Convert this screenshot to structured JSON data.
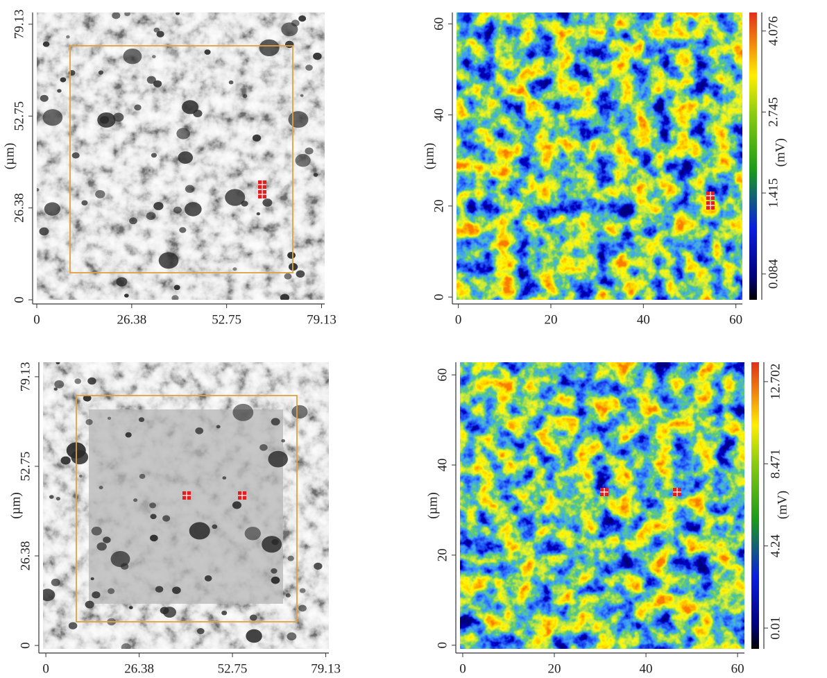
{
  "chart_data": [
    {
      "type": "image",
      "xlim": [
        0,
        80
      ],
      "ylim": [
        0,
        82.5
      ],
      "xticks": [
        0,
        26.38,
        52.75,
        79.13
      ],
      "yticks": [
        0,
        26.38,
        52.75,
        79.13
      ],
      "ylabel": "(µm)"
    },
    {
      "type": "heatmap",
      "xlim": [
        -0.4,
        61.4
      ],
      "ylim": [
        -0.6,
        62.5
      ],
      "xticks": [
        0,
        20,
        40,
        60
      ],
      "yticks": [
        0,
        20,
        40,
        60
      ],
      "ylabel": "(µm)",
      "colorbar": {
        "clim": [
          -0.34,
          4.38
        ],
        "ticks": [
          0.084,
          1.415,
          2.745,
          4.076
        ],
        "label": "(mV)"
      }
    },
    {
      "type": "image",
      "xlim": [
        -0.8,
        80
      ],
      "ylim": [
        -1,
        83.4
      ],
      "xticks": [
        0,
        26.38,
        52.75,
        79.13
      ],
      "yticks": [
        0,
        26.38,
        52.75,
        79.13
      ],
      "ylabel": "(µm)"
    },
    {
      "type": "heatmap",
      "xlim": [
        -0.6,
        61.5
      ],
      "ylim": [
        -0.8,
        62.8
      ],
      "xticks": [
        0,
        20,
        40,
        60
      ],
      "yticks": [
        0,
        20,
        40,
        60
      ],
      "ylabel": "(µm)",
      "colorbar": {
        "clim": [
          -1.06,
          13.7
        ],
        "ticks": [
          0.01,
          4.24,
          8.471,
          12.702
        ],
        "label": "(mV)"
      }
    }
  ]
}
